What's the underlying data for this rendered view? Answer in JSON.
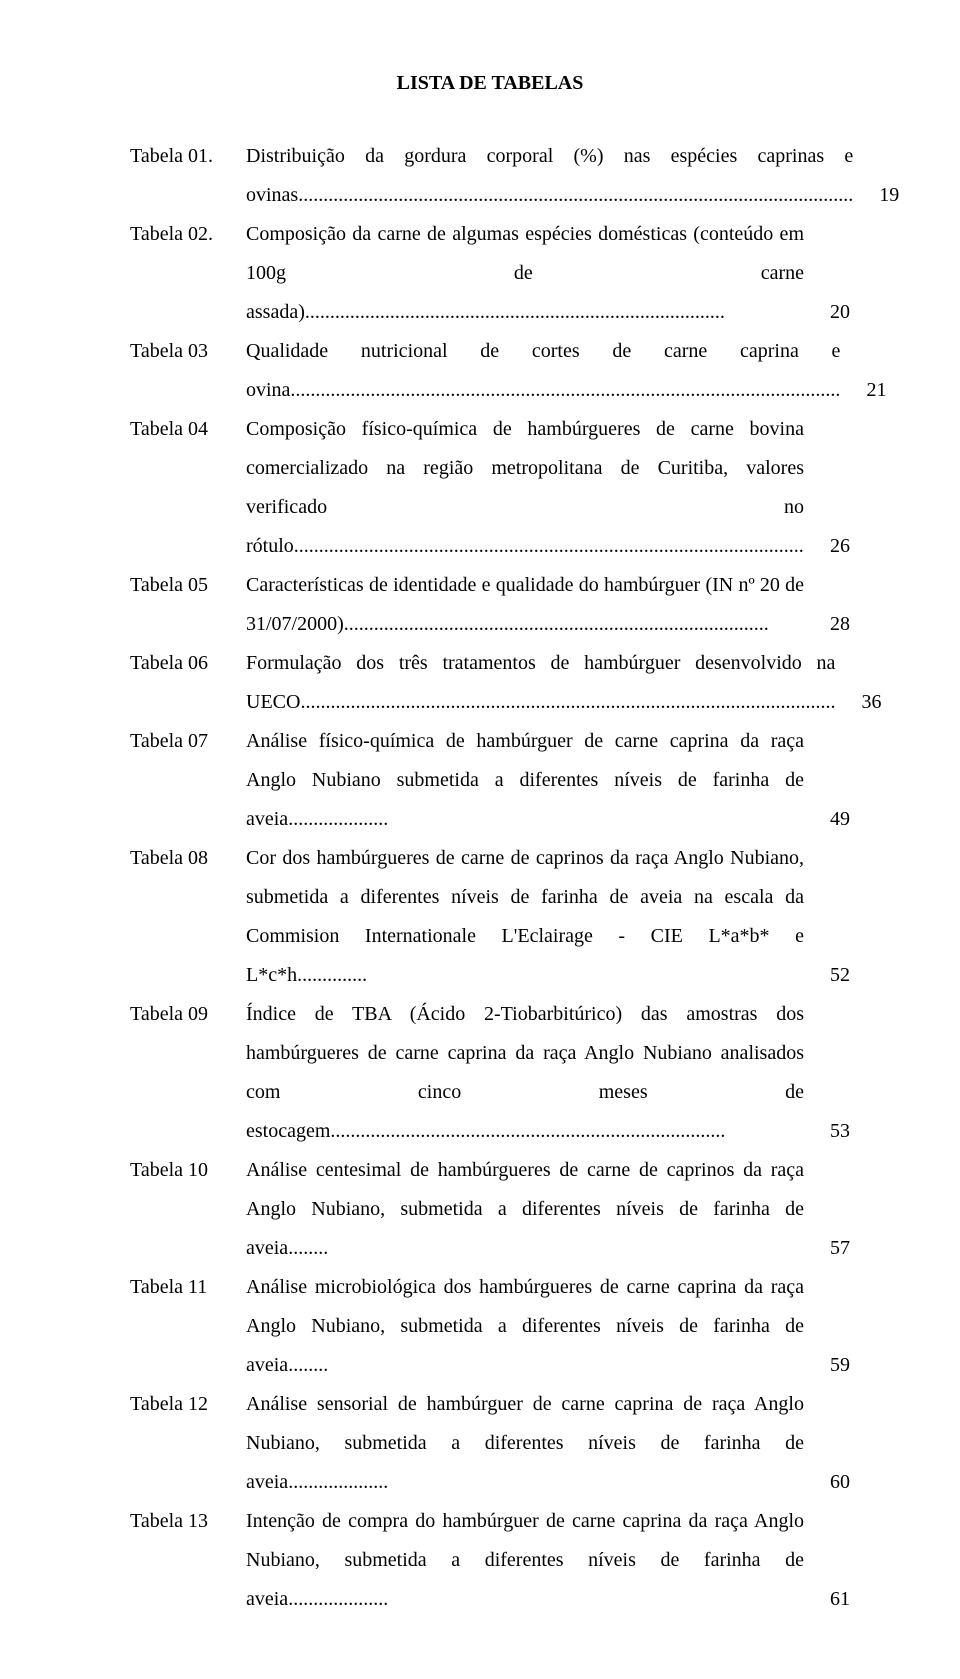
{
  "title": "LISTA DE TABELAS",
  "font": {
    "family": "Times New Roman",
    "size_pt": 12,
    "color": "#000000"
  },
  "background_color": "#ffffff",
  "entries": [
    {
      "label": "Tabela 01.",
      "desc": "Distribuição da gordura corporal (%) nas espécies caprinas e ovinas...............................................................................................................",
      "page": "19"
    },
    {
      "label": "Tabela 02.",
      "desc": "Composição da carne de algumas espécies domésticas (conteúdo em 100g de carne assada)....................................................................................",
      "page": "20"
    },
    {
      "label": "Tabela 03",
      "desc": "Qualidade nutricional de cortes de carne caprina e ovina..............................................................................................................",
      "page": "21"
    },
    {
      "label": "Tabela 04",
      "desc": "Composição físico-química de hambúrgueres de carne bovina comercializado na região metropolitana de Curitiba, valores verificado no rótulo......................................................................................................",
      "page": "26"
    },
    {
      "label": "Tabela 05",
      "desc": "Características de identidade e qualidade do hambúrguer (IN nº 20 de 31/07/2000).....................................................................................",
      "page": "28"
    },
    {
      "label": "Tabela 06",
      "desc": "Formulação dos três tratamentos de hambúrguer desenvolvido na UECO...........................................................................................................",
      "page": "36"
    },
    {
      "label": "Tabela 07",
      "desc": "Análise físico-química de hambúrguer de carne caprina da raça Anglo Nubiano submetida a diferentes níveis de farinha de aveia....................",
      "page": "49"
    },
    {
      "label": "Tabela 08",
      "desc": "Cor dos hambúrgueres de carne de caprinos da raça Anglo Nubiano, submetida a diferentes níveis de farinha de aveia na escala da Commision Internationale L'Eclairage - CIE L*a*b* e L*c*h..............",
      "page": "52"
    },
    {
      "label": "Tabela 09",
      "desc": "Índice de TBA (Ácido 2-Tiobarbitúrico) das amostras dos hambúrgueres de carne caprina da raça Anglo Nubiano analisados com cinco meses de estocagem...............................................................................",
      "page": "53"
    },
    {
      "label": "Tabela 10",
      "desc": "Análise centesimal de hambúrgueres de carne de caprinos da raça Anglo Nubiano, submetida a diferentes níveis de farinha de aveia........",
      "page": "57"
    },
    {
      "label": "Tabela 11",
      "desc": "Análise microbiológica dos hambúrgueres de carne caprina da raça Anglo Nubiano, submetida a diferentes níveis de farinha de aveia........",
      "page": "59"
    },
    {
      "label": "Tabela 12",
      "desc": "Análise sensorial de hambúrguer de carne caprina de raça Anglo Nubiano, submetida a diferentes níveis de farinha de aveia....................",
      "page": "60"
    },
    {
      "label": "Tabela 13",
      "desc": "Intenção de compra do hambúrguer de carne caprina da raça Anglo Nubiano, submetida a diferentes níveis de farinha de aveia....................",
      "page": "61"
    }
  ]
}
